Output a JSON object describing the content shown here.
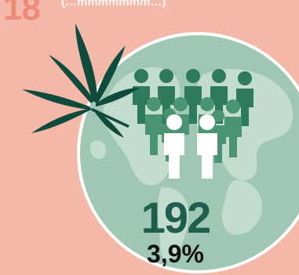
{
  "header": {
    "number": "18",
    "partial_heading": "(…mmmmmmm…)"
  },
  "stats": {
    "count": "192",
    "percent": "3,9%"
  },
  "people": {
    "highlighted": 2,
    "total": 13
  },
  "colors": {
    "background": "#f4b8a8",
    "number": "#f08a78",
    "globe": "#9fc7b4",
    "globe_land": "#c2dccd",
    "people_dark": "#2d7a5e",
    "people_mid": "#4a9373",
    "people_highlight": "#ffffff",
    "leaf": "#0f4b3d",
    "count_text": "#1f5d4c"
  },
  "icons": [
    "cannabis-leaf-icon",
    "globe-icon",
    "person-icon"
  ]
}
